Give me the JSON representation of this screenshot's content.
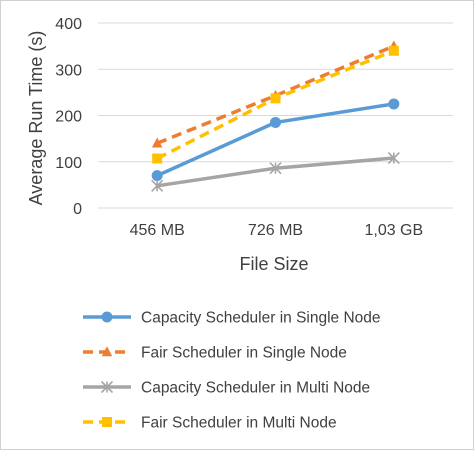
{
  "chart_data": {
    "type": "line",
    "title": "",
    "xlabel": "File Size",
    "ylabel": "Average Run Time (s)",
    "categories": [
      "456 MB",
      "726 MB",
      "1,03 GB"
    ],
    "ylim": [
      0,
      400
    ],
    "yticks": [
      0,
      100,
      200,
      300,
      400
    ],
    "grid": true,
    "legend_position": "bottom",
    "series": [
      {
        "name": "Capacity Scheduler in Single Node",
        "values": [
          70,
          185,
          225
        ],
        "color": "#5B9BD5",
        "marker": "circle",
        "dash": "solid"
      },
      {
        "name": "Fair Scheduler in Single Node",
        "values": [
          140,
          243,
          350
        ],
        "color": "#ED7D31",
        "marker": "triangle",
        "dash": "dashed"
      },
      {
        "name": "Capacity Scheduler in Multi Node",
        "values": [
          48,
          86,
          108
        ],
        "color": "#A5A5A5",
        "marker": "asterisk",
        "dash": "solid"
      },
      {
        "name": "Fair Scheduler in Multi Node",
        "values": [
          107,
          237,
          340
        ],
        "color": "#FFC000",
        "marker": "square",
        "dash": "dashed"
      }
    ]
  }
}
